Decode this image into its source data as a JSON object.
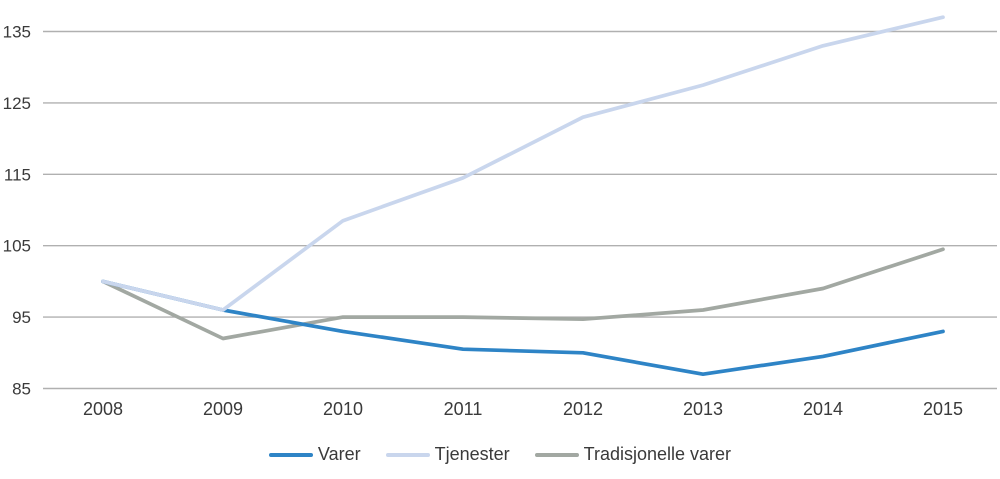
{
  "chart_data": {
    "type": "line",
    "categories": [
      "2008",
      "2009",
      "2010",
      "2011",
      "2012",
      "2013",
      "2014",
      "2015"
    ],
    "series": [
      {
        "name": "Varer",
        "color": "#2e84c6",
        "values": [
          100,
          96,
          93,
          90.5,
          90,
          87,
          89.5,
          93
        ]
      },
      {
        "name": "Tjenester",
        "color": "#c9d6ed",
        "values": [
          100,
          96,
          108.5,
          114.5,
          123,
          127.5,
          133,
          137
        ]
      },
      {
        "name": "Tradisjonelle varer",
        "color": "#a2a8a2",
        "values": [
          100,
          92,
          95,
          95,
          94.7,
          96,
          99,
          104.5
        ]
      }
    ],
    "draw_order": [
      2,
      0,
      1
    ],
    "ylim": [
      85,
      135
    ],
    "yticks": [
      85,
      95,
      105,
      115,
      125,
      135
    ],
    "grid": true,
    "legend_position": "bottom"
  },
  "styles": {
    "grid_color": "#b0b0b0",
    "text_color": "#3a3a3a",
    "background": "#ffffff"
  }
}
